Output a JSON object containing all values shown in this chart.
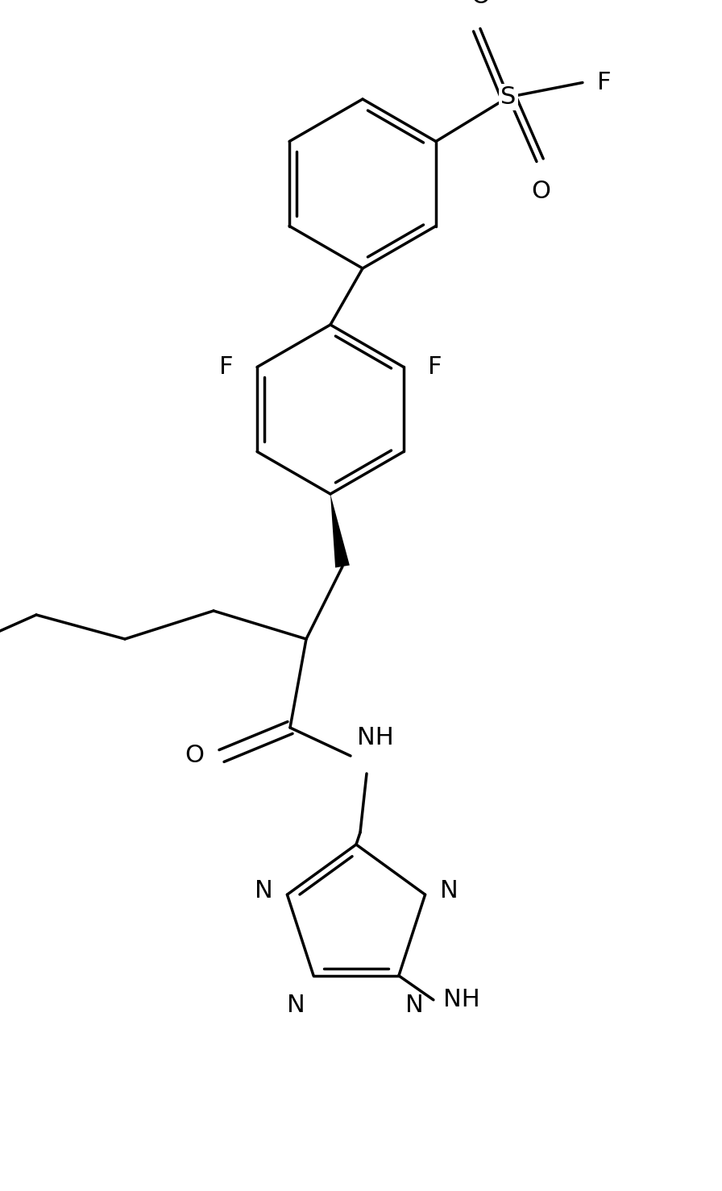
{
  "bg_color": "#ffffff",
  "line_color": "#000000",
  "lw": 2.5,
  "fs": 22,
  "figsize": [
    8.96,
    14.78
  ],
  "dpi": 100,
  "xlim": [
    0,
    8.96
  ],
  "ylim": [
    0,
    14.78
  ]
}
